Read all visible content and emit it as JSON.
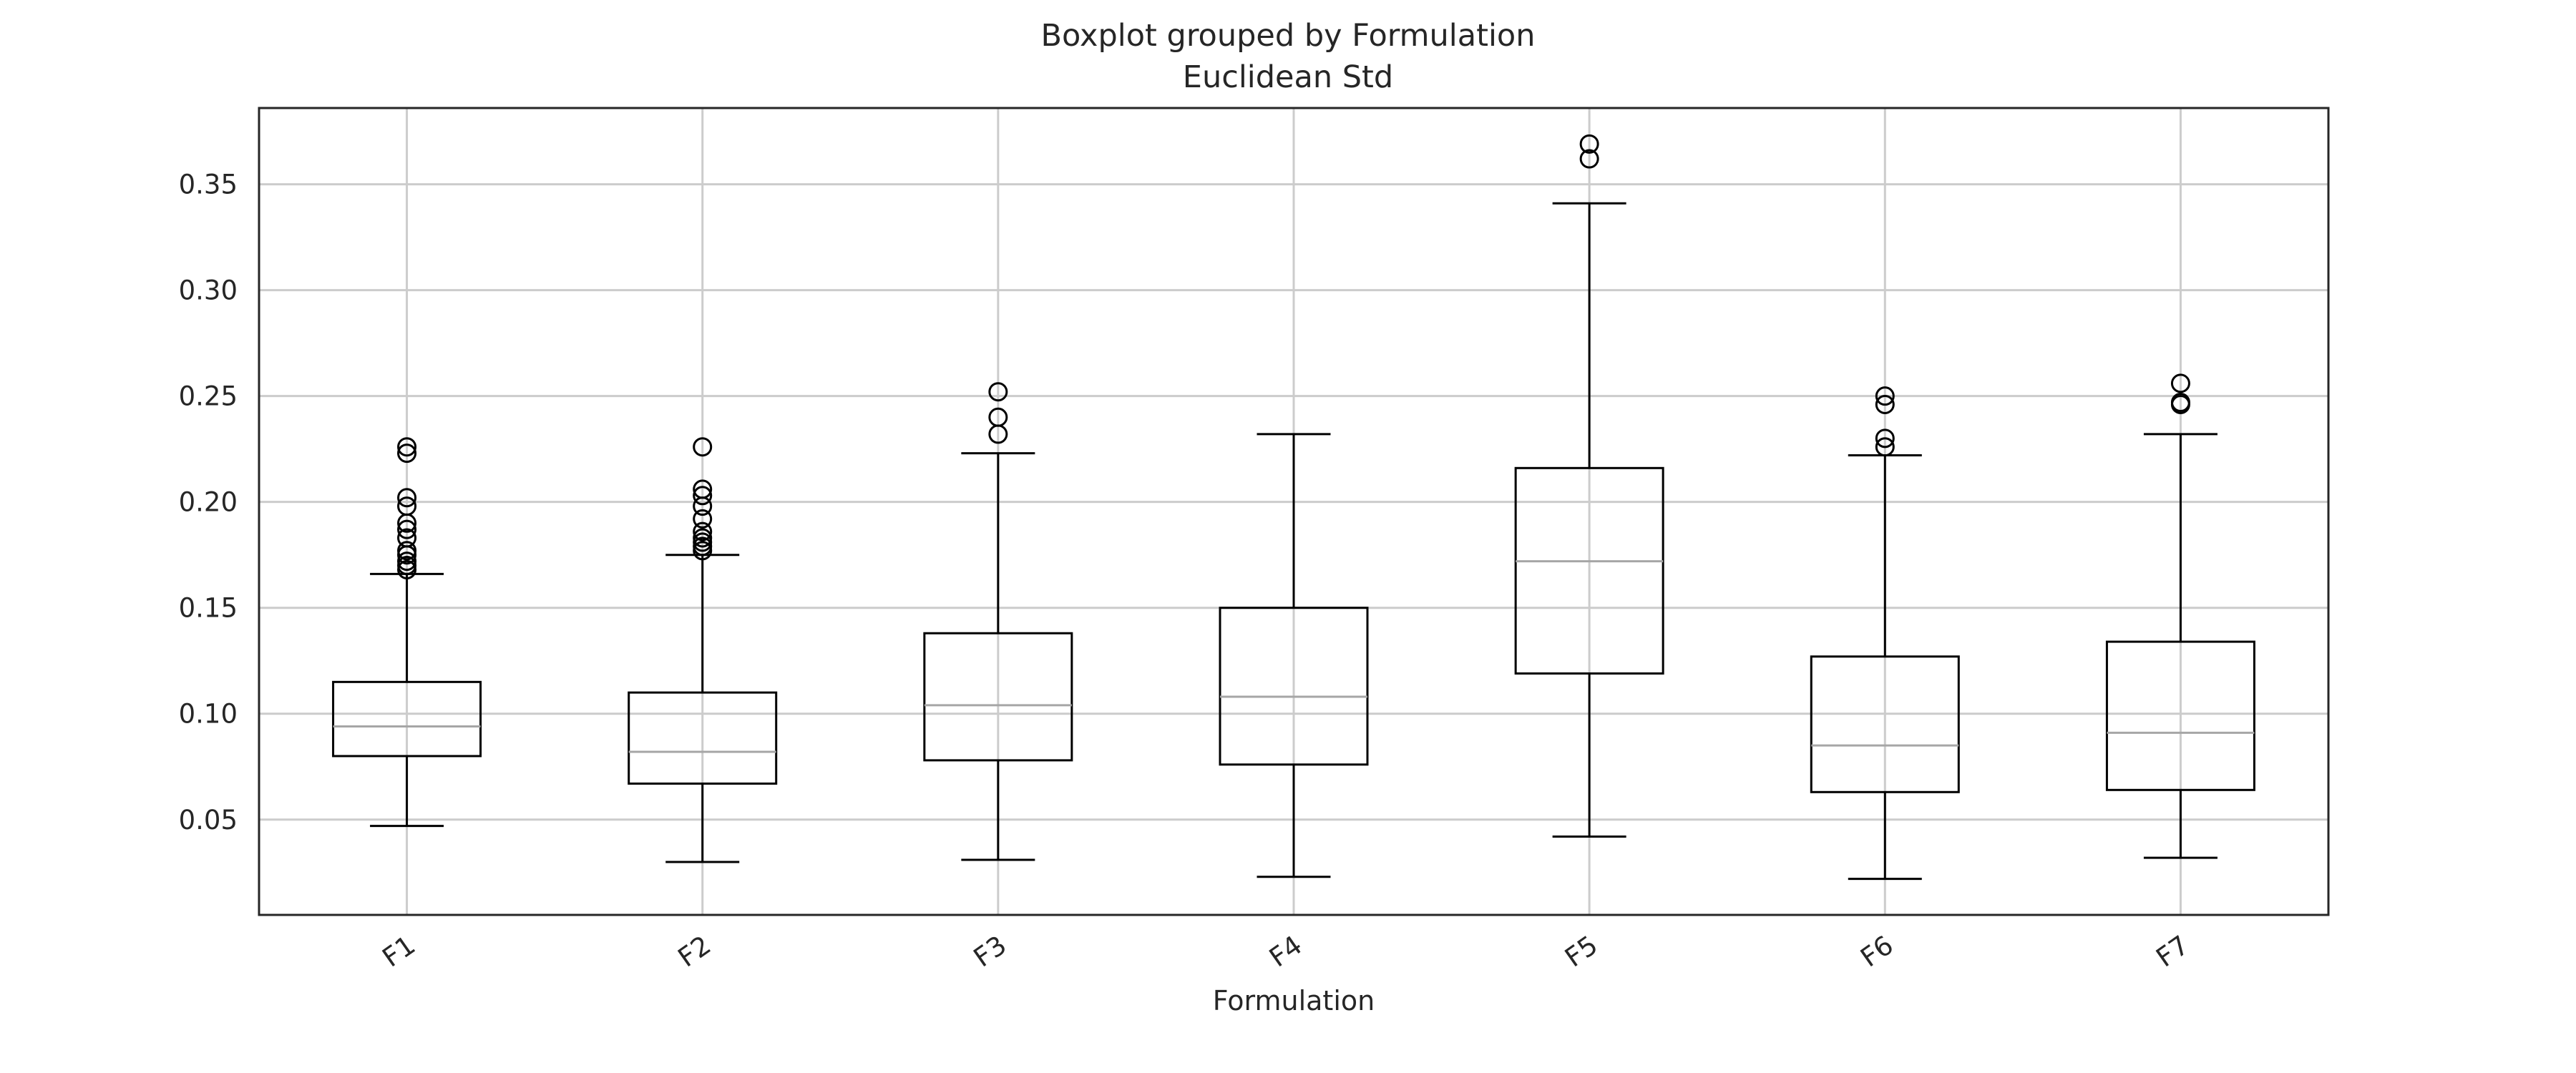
{
  "chart_data": {
    "type": "boxplot",
    "title": "Boxplot grouped by Formulation",
    "subtitle": "Euclidean Std",
    "xlabel": "Formulation",
    "ylabel": "",
    "ylim": [
      0.005,
      0.386
    ],
    "yticks": [
      0.05,
      0.1,
      0.15,
      0.2,
      0.25,
      0.3,
      0.35
    ],
    "ytick_labels": [
      "0.05",
      "0.10",
      "0.15",
      "0.20",
      "0.25",
      "0.30",
      "0.35"
    ],
    "grid": true,
    "categories": [
      "F1",
      "F2",
      "F3",
      "F4",
      "F5",
      "F6",
      "F7"
    ],
    "boxes": [
      {
        "name": "F1",
        "whisker_low": 0.047,
        "q1": 0.08,
        "median": 0.094,
        "q3": 0.115,
        "whisker_high": 0.166,
        "outliers": [
          0.168,
          0.17,
          0.172,
          0.175,
          0.177,
          0.183,
          0.187,
          0.19,
          0.198,
          0.202,
          0.223,
          0.226
        ]
      },
      {
        "name": "F2",
        "whisker_low": 0.03,
        "q1": 0.067,
        "median": 0.082,
        "q3": 0.11,
        "whisker_high": 0.175,
        "outliers": [
          0.177,
          0.179,
          0.181,
          0.183,
          0.186,
          0.192,
          0.198,
          0.203,
          0.206,
          0.226
        ]
      },
      {
        "name": "F3",
        "whisker_low": 0.031,
        "q1": 0.078,
        "median": 0.104,
        "q3": 0.138,
        "whisker_high": 0.223,
        "outliers": [
          0.232,
          0.24,
          0.252
        ]
      },
      {
        "name": "F4",
        "whisker_low": 0.023,
        "q1": 0.076,
        "median": 0.108,
        "q3": 0.15,
        "whisker_high": 0.232,
        "outliers": []
      },
      {
        "name": "F5",
        "whisker_low": 0.042,
        "q1": 0.119,
        "median": 0.172,
        "q3": 0.216,
        "whisker_high": 0.341,
        "outliers": [
          0.362,
          0.369
        ]
      },
      {
        "name": "F6",
        "whisker_low": 0.022,
        "q1": 0.063,
        "median": 0.085,
        "q3": 0.127,
        "whisker_high": 0.222,
        "outliers": [
          0.226,
          0.23,
          0.246,
          0.25
        ]
      },
      {
        "name": "F7",
        "whisker_low": 0.032,
        "q1": 0.064,
        "median": 0.091,
        "q3": 0.134,
        "whisker_high": 0.232,
        "outliers": [
          0.246,
          0.247,
          0.256
        ]
      }
    ],
    "colors": {
      "box": "#000000",
      "median": "#a6a6a6",
      "grid": "#cccccc",
      "frame": "#262626"
    }
  }
}
